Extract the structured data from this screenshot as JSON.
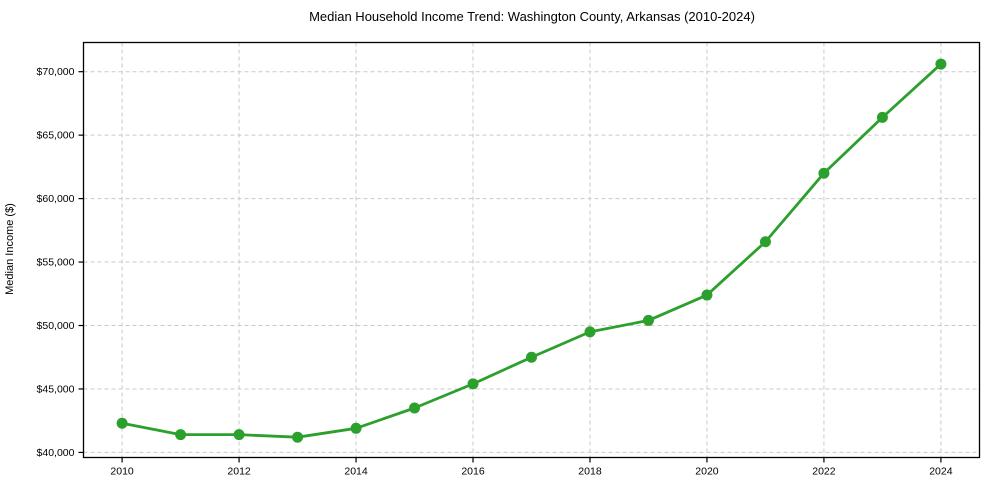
{
  "chart_data": {
    "type": "line",
    "title": "Median Household Income Trend: Washington County, Arkansas (2010-2024)",
    "xlabel": "",
    "ylabel": "Median Income ($)",
    "x": [
      2010,
      2011,
      2012,
      2013,
      2014,
      2015,
      2016,
      2017,
      2018,
      2019,
      2020,
      2021,
      2022,
      2023,
      2024
    ],
    "series": [
      {
        "name": "Median Household Income",
        "values": [
          42300,
          41400,
          41400,
          41200,
          41900,
          43500,
          45400,
          47500,
          49500,
          50400,
          52400,
          56600,
          62000,
          66400,
          70600
        ]
      }
    ],
    "x_ticks": [
      2010,
      2012,
      2014,
      2016,
      2018,
      2020,
      2022,
      2024
    ],
    "x_tick_labels": [
      "2010",
      "2012",
      "2014",
      "2016",
      "2018",
      "2020",
      "2022",
      "2024"
    ],
    "y_ticks": [
      40000,
      45000,
      50000,
      55000,
      60000,
      65000,
      70000
    ],
    "y_tick_labels": [
      "$40,000",
      "$45,000",
      "$50,000",
      "$55,000",
      "$60,000",
      "$65,000",
      "$70,000"
    ],
    "xlim": [
      2009.34,
      2024.66
    ],
    "ylim": [
      39600,
      72300
    ],
    "grid": true,
    "grid_style": "dashed",
    "legend": "none",
    "colors": {
      "line": "#2ca02c",
      "marker": "#2ca02c",
      "grid": "#c9c9c9",
      "spine": "#000000",
      "text": "#000000",
      "background": "#ffffff"
    }
  }
}
